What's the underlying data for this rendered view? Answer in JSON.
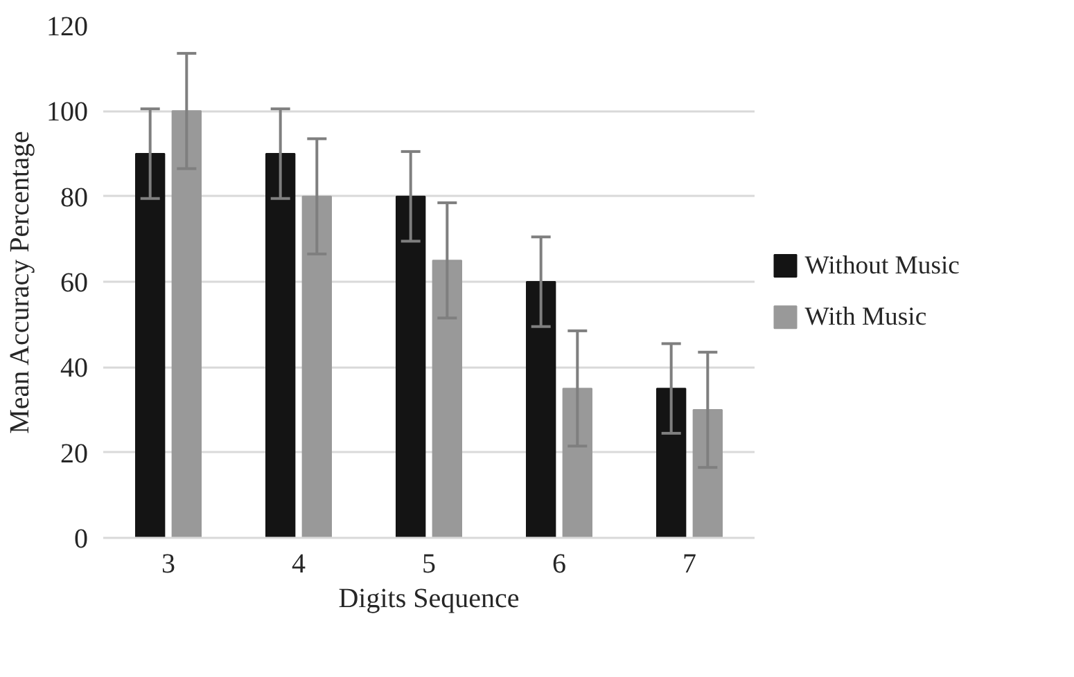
{
  "chart_data": {
    "type": "bar",
    "xlabel": "Digits Sequence",
    "ylabel": "Mean Accuracy Percentage",
    "categories": [
      "3",
      "4",
      "5",
      "6",
      "7"
    ],
    "series": [
      {
        "name": "Without Music",
        "color": "#141414",
        "values": [
          90,
          90,
          80,
          60,
          35
        ],
        "errors": [
          10.5,
          10.5,
          10.5,
          10.5,
          10.5
        ]
      },
      {
        "name": "With Music",
        "color": "#999999",
        "values": [
          100,
          80,
          65,
          35,
          30
        ],
        "errors": [
          13.5,
          13.5,
          13.5,
          13.5,
          13.5
        ]
      }
    ],
    "ylim": [
      0,
      120
    ],
    "yticks": [
      0,
      20,
      40,
      60,
      80,
      100,
      120
    ],
    "grid": "y",
    "legend": "right"
  }
}
